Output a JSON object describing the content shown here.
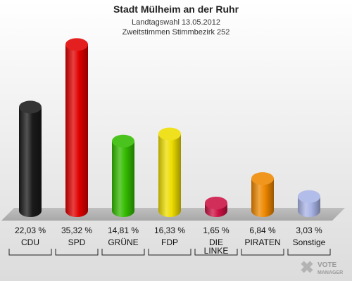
{
  "header": {
    "title": "Stadt Mülheim an der Ruhr",
    "subtitle1": "Landtagswahl 13.05.2012",
    "subtitle2": "Zweitstimmen Stimmbezirk 252"
  },
  "chart_data": {
    "type": "bar",
    "title": "Stadt Mülheim an der Ruhr",
    "subtitle": [
      "Landtagswahl 13.05.2012",
      "Zweitstimmen Stimmbezirk 252"
    ],
    "categories": [
      "CDU",
      "SPD",
      "GRÜNE",
      "FDP",
      "DIE LINKE",
      "PIRATEN",
      "Sonstige"
    ],
    "category_lines": [
      [
        "CDU"
      ],
      [
        "SPD"
      ],
      [
        "GRÜNE"
      ],
      [
        "FDP"
      ],
      [
        "DIE",
        "LINKE"
      ],
      [
        "PIRATEN"
      ],
      [
        "Sonstige"
      ]
    ],
    "values": [
      22.03,
      35.32,
      14.81,
      16.33,
      1.65,
      6.84,
      3.03
    ],
    "value_labels": [
      "22,03 %",
      "35,32 %",
      "14,81 %",
      "16,33 %",
      "1,65 %",
      "6,84 %",
      "3,03 %"
    ],
    "colors": [
      "#1a1a1a",
      "#e00000",
      "#33bb00",
      "#eedd00",
      "#cc1144",
      "#ee8800",
      "#a9b4e6"
    ],
    "bar_style": "3d-cylinder",
    "xlabel": "",
    "ylabel": "",
    "grid": false
  },
  "branding": {
    "logo_text_1": "VOTE",
    "logo_text_2": "MANAGER"
  }
}
